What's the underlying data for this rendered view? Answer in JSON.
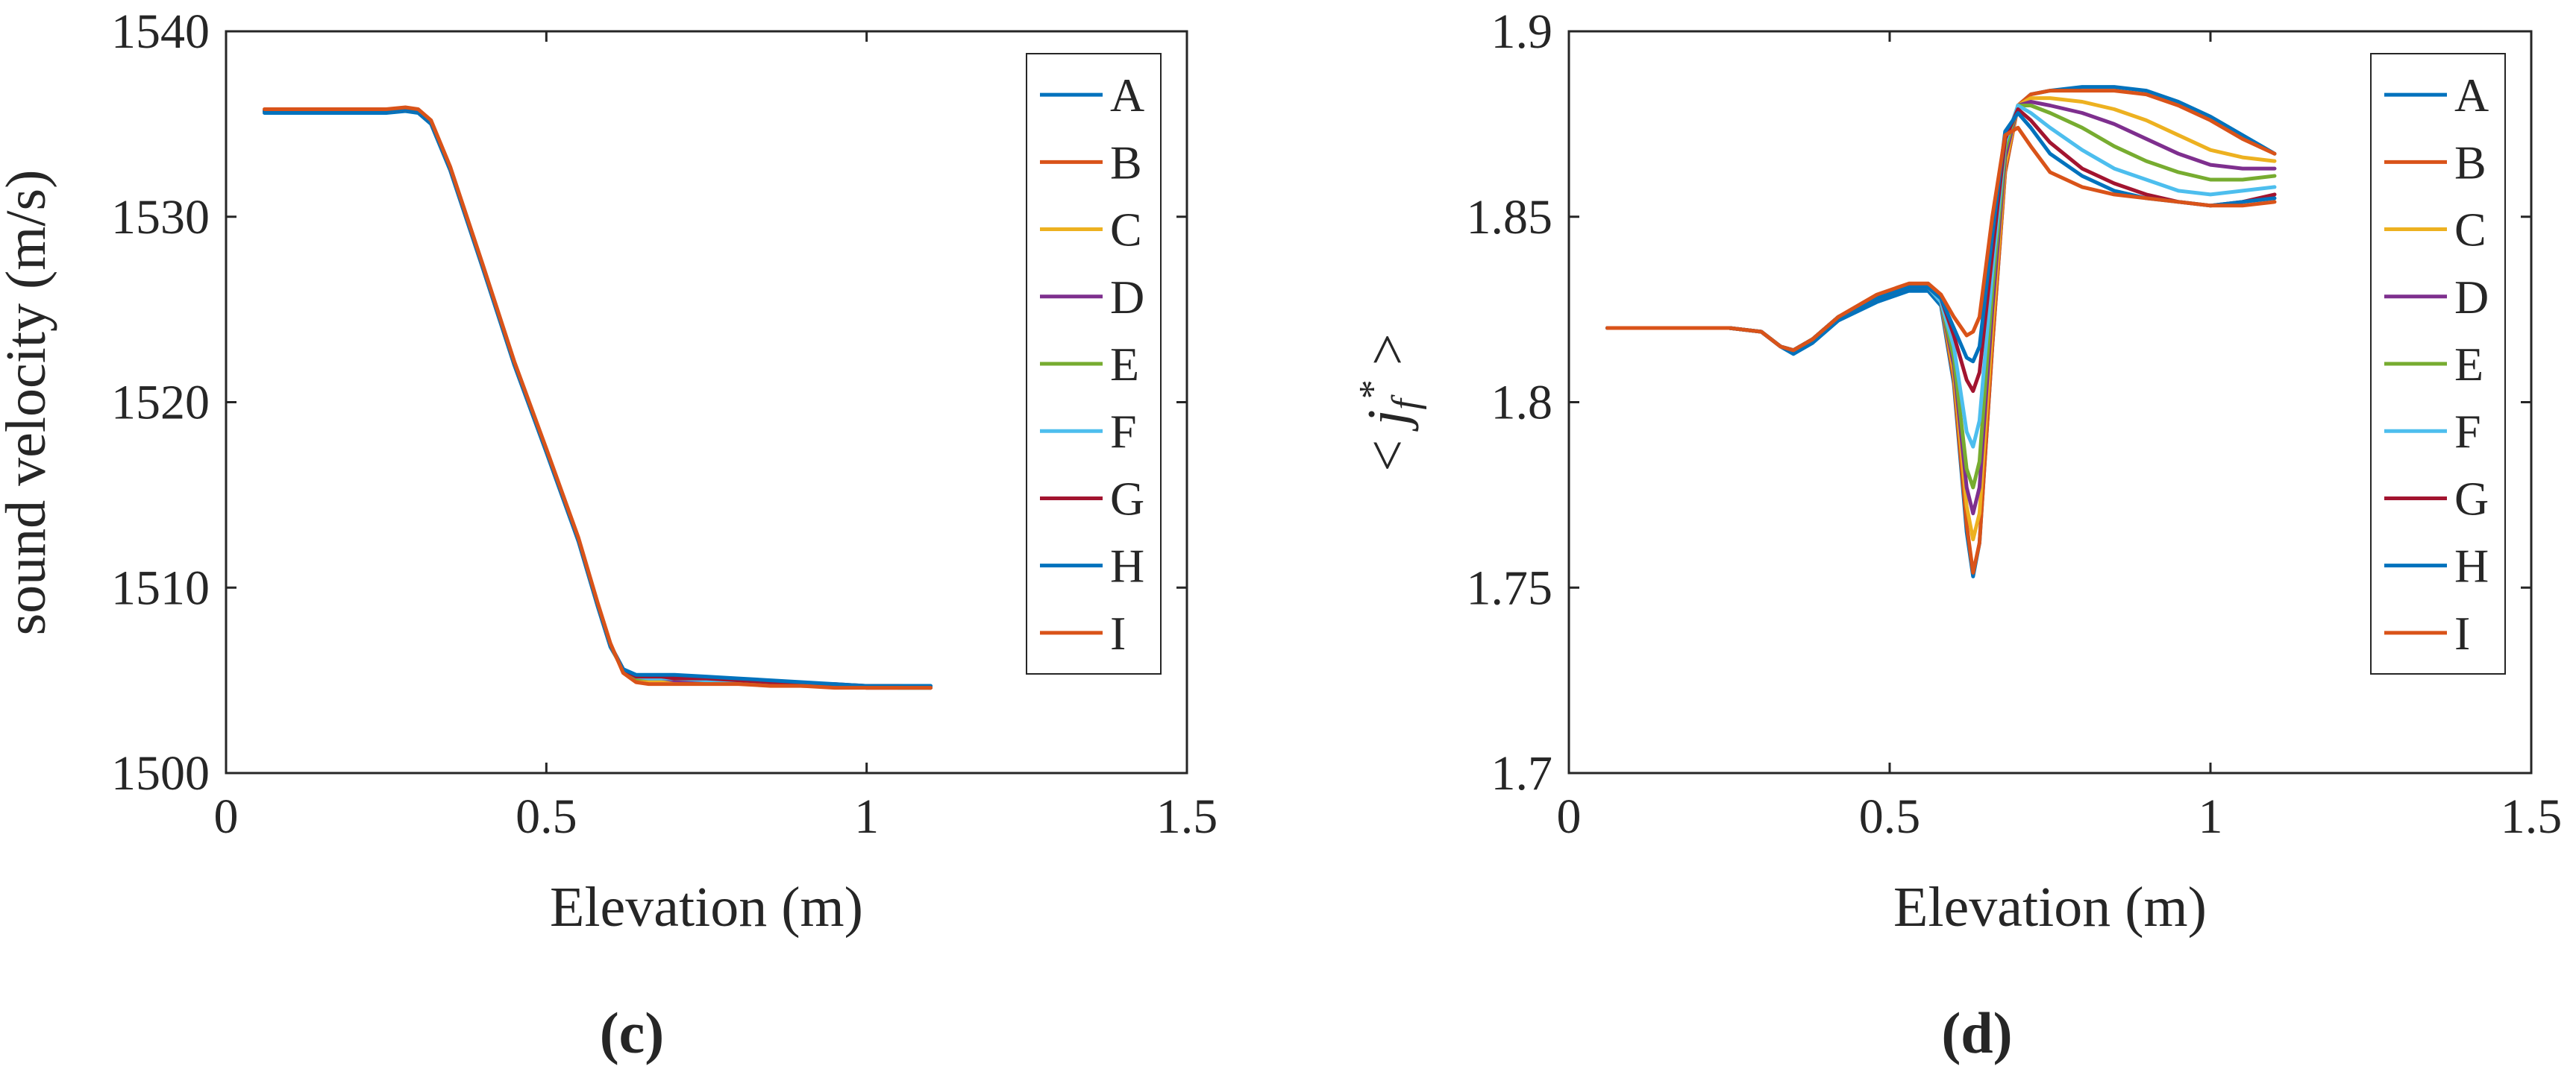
{
  "colors": {
    "A": "#0072bd",
    "B": "#d95319",
    "C": "#edb120",
    "D": "#7e2f8e",
    "E": "#77ac30",
    "F": "#4dbeee",
    "G": "#a2142f",
    "H": "#0072bd",
    "I": "#d95319",
    "axis": "#262626",
    "box": "#d9d9d9"
  },
  "chart_data": [
    {
      "type": "line",
      "panel_label": "(c)",
      "xlabel": "Elevation (m)",
      "ylabel": "sound velocity (m/s)",
      "xlim": [
        0,
        1.5
      ],
      "ylim": [
        1500,
        1540
      ],
      "xticks": [
        0,
        0.5,
        1,
        1.5
      ],
      "xtick_labels": [
        "0",
        "0.5",
        "1",
        "1.5"
      ],
      "yticks": [
        1500,
        1510,
        1520,
        1530,
        1540
      ],
      "ytick_labels": [
        "1500",
        "1510",
        "1520",
        "1530",
        "1540"
      ],
      "grid": false,
      "legend_position": "top-right",
      "x": [
        0.06,
        0.1,
        0.15,
        0.2,
        0.25,
        0.28,
        0.3,
        0.32,
        0.35,
        0.4,
        0.45,
        0.5,
        0.55,
        0.58,
        0.6,
        0.62,
        0.64,
        0.66,
        0.68,
        0.7,
        0.75,
        0.8,
        0.85,
        0.9,
        0.95,
        1.0,
        1.05,
        1.1
      ],
      "series": [
        {
          "name": "A",
          "values": [
            1535.6,
            1535.6,
            1535.6,
            1535.6,
            1535.6,
            1535.7,
            1535.6,
            1535.0,
            1532.5,
            1527.3,
            1522.0,
            1517.3,
            1512.5,
            1509.0,
            1506.8,
            1505.6,
            1505.2,
            1505.2,
            1505.2,
            1505.2,
            1505.1,
            1505.0,
            1504.9,
            1504.8,
            1504.7,
            1504.7,
            1504.7,
            1504.7
          ]
        },
        {
          "name": "B",
          "values": [
            1535.7,
            1535.7,
            1535.7,
            1535.7,
            1535.7,
            1535.8,
            1535.7,
            1535.1,
            1532.6,
            1527.4,
            1522.1,
            1517.4,
            1512.6,
            1509.1,
            1506.9,
            1505.5,
            1505.1,
            1505.0,
            1505.0,
            1505.0,
            1504.9,
            1504.9,
            1504.8,
            1504.7,
            1504.7,
            1504.6,
            1504.6,
            1504.6
          ]
        },
        {
          "name": "C",
          "values": [
            1535.7,
            1535.7,
            1535.7,
            1535.7,
            1535.7,
            1535.8,
            1535.7,
            1535.1,
            1532.6,
            1527.4,
            1522.1,
            1517.4,
            1512.6,
            1509.1,
            1506.9,
            1505.5,
            1505.1,
            1505.0,
            1505.0,
            1505.0,
            1505.0,
            1504.9,
            1504.8,
            1504.7,
            1504.7,
            1504.6,
            1504.6,
            1504.6
          ]
        },
        {
          "name": "D",
          "values": [
            1535.7,
            1535.7,
            1535.7,
            1535.7,
            1535.7,
            1535.8,
            1535.7,
            1535.1,
            1532.6,
            1527.4,
            1522.1,
            1517.4,
            1512.6,
            1509.1,
            1506.9,
            1505.5,
            1505.1,
            1505.1,
            1505.1,
            1505.0,
            1505.0,
            1504.9,
            1504.8,
            1504.8,
            1504.7,
            1504.6,
            1504.6,
            1504.6
          ]
        },
        {
          "name": "E",
          "values": [
            1535.7,
            1535.7,
            1535.7,
            1535.7,
            1535.7,
            1535.8,
            1535.7,
            1535.1,
            1532.6,
            1527.4,
            1522.1,
            1517.4,
            1512.6,
            1509.1,
            1506.9,
            1505.5,
            1505.1,
            1505.1,
            1505.1,
            1505.1,
            1505.0,
            1504.9,
            1504.9,
            1504.8,
            1504.7,
            1504.7,
            1504.6,
            1504.6
          ]
        },
        {
          "name": "F",
          "values": [
            1535.7,
            1535.7,
            1535.7,
            1535.7,
            1535.7,
            1535.8,
            1535.7,
            1535.1,
            1532.6,
            1527.4,
            1522.1,
            1517.4,
            1512.6,
            1509.1,
            1506.9,
            1505.6,
            1505.2,
            1505.1,
            1505.1,
            1505.1,
            1505.0,
            1505.0,
            1504.9,
            1504.8,
            1504.7,
            1504.7,
            1504.6,
            1504.6
          ]
        },
        {
          "name": "G",
          "values": [
            1535.7,
            1535.7,
            1535.7,
            1535.7,
            1535.7,
            1535.8,
            1535.7,
            1535.1,
            1532.6,
            1527.4,
            1522.1,
            1517.4,
            1512.6,
            1509.1,
            1506.9,
            1505.6,
            1505.2,
            1505.2,
            1505.2,
            1505.1,
            1505.1,
            1505.0,
            1504.9,
            1504.8,
            1504.8,
            1504.7,
            1504.7,
            1504.6
          ]
        },
        {
          "name": "H",
          "values": [
            1535.7,
            1535.7,
            1535.7,
            1535.7,
            1535.7,
            1535.8,
            1535.7,
            1535.1,
            1532.6,
            1527.4,
            1522.1,
            1517.4,
            1512.6,
            1509.1,
            1506.9,
            1505.6,
            1505.3,
            1505.3,
            1505.3,
            1505.3,
            1505.2,
            1505.1,
            1505.0,
            1504.9,
            1504.8,
            1504.7,
            1504.7,
            1504.7
          ]
        },
        {
          "name": "I",
          "values": [
            1535.8,
            1535.8,
            1535.8,
            1535.8,
            1535.8,
            1535.9,
            1535.8,
            1535.2,
            1532.7,
            1527.5,
            1522.2,
            1517.5,
            1512.7,
            1509.2,
            1507.0,
            1505.4,
            1504.9,
            1504.8,
            1504.8,
            1504.8,
            1504.8,
            1504.8,
            1504.7,
            1504.7,
            1504.6,
            1504.6,
            1504.6,
            1504.6
          ]
        }
      ]
    },
    {
      "type": "line",
      "panel_label": "(d)",
      "xlabel": "Elevation (m)",
      "ylabel": "< j_f^* >",
      "xlim": [
        0,
        1.5
      ],
      "ylim": [
        1.7,
        1.9
      ],
      "xticks": [
        0,
        0.5,
        1,
        1.5
      ],
      "xtick_labels": [
        "0",
        "0.5",
        "1",
        "1.5"
      ],
      "yticks": [
        1.7,
        1.75,
        1.8,
        1.85,
        1.9
      ],
      "ytick_labels": [
        "1.7",
        "1.75",
        "1.8",
        "1.85",
        "1.9"
      ],
      "grid": false,
      "legend_position": "top-right",
      "x": [
        0.06,
        0.15,
        0.25,
        0.3,
        0.33,
        0.35,
        0.38,
        0.42,
        0.48,
        0.53,
        0.56,
        0.58,
        0.6,
        0.62,
        0.63,
        0.64,
        0.66,
        0.68,
        0.7,
        0.72,
        0.75,
        0.8,
        0.85,
        0.9,
        0.95,
        1.0,
        1.05,
        1.1
      ],
      "series": [
        {
          "name": "A",
          "values": [
            1.82,
            1.82,
            1.82,
            1.819,
            1.815,
            1.813,
            1.816,
            1.822,
            1.827,
            1.83,
            1.83,
            1.826,
            1.805,
            1.765,
            1.753,
            1.762,
            1.815,
            1.862,
            1.88,
            1.883,
            1.884,
            1.885,
            1.885,
            1.884,
            1.881,
            1.877,
            1.872,
            1.867
          ]
        },
        {
          "name": "B",
          "values": [
            1.82,
            1.82,
            1.82,
            1.819,
            1.815,
            1.814,
            1.817,
            1.823,
            1.828,
            1.831,
            1.831,
            1.827,
            1.806,
            1.767,
            1.754,
            1.762,
            1.815,
            1.862,
            1.88,
            1.883,
            1.884,
            1.884,
            1.884,
            1.883,
            1.88,
            1.876,
            1.871,
            1.867
          ]
        },
        {
          "name": "C",
          "values": [
            1.82,
            1.82,
            1.82,
            1.819,
            1.815,
            1.814,
            1.817,
            1.823,
            1.828,
            1.831,
            1.831,
            1.827,
            1.808,
            1.772,
            1.763,
            1.77,
            1.82,
            1.864,
            1.88,
            1.882,
            1.882,
            1.881,
            1.879,
            1.876,
            1.872,
            1.868,
            1.866,
            1.865
          ]
        },
        {
          "name": "D",
          "values": [
            1.82,
            1.82,
            1.82,
            1.819,
            1.815,
            1.814,
            1.817,
            1.823,
            1.828,
            1.831,
            1.831,
            1.827,
            1.81,
            1.777,
            1.77,
            1.777,
            1.825,
            1.866,
            1.88,
            1.881,
            1.88,
            1.878,
            1.875,
            1.871,
            1.867,
            1.864,
            1.863,
            1.863
          ]
        },
        {
          "name": "E",
          "values": [
            1.82,
            1.82,
            1.82,
            1.819,
            1.815,
            1.814,
            1.817,
            1.823,
            1.828,
            1.831,
            1.831,
            1.827,
            1.812,
            1.782,
            1.777,
            1.784,
            1.83,
            1.868,
            1.88,
            1.88,
            1.878,
            1.874,
            1.869,
            1.865,
            1.862,
            1.86,
            1.86,
            1.861
          ]
        },
        {
          "name": "F",
          "values": [
            1.82,
            1.82,
            1.82,
            1.819,
            1.815,
            1.814,
            1.817,
            1.823,
            1.828,
            1.831,
            1.831,
            1.827,
            1.815,
            1.792,
            1.788,
            1.795,
            1.835,
            1.87,
            1.88,
            1.878,
            1.874,
            1.868,
            1.863,
            1.86,
            1.857,
            1.856,
            1.857,
            1.858
          ]
        },
        {
          "name": "G",
          "values": [
            1.82,
            1.82,
            1.82,
            1.819,
            1.815,
            1.814,
            1.817,
            1.823,
            1.828,
            1.831,
            1.831,
            1.828,
            1.818,
            1.806,
            1.803,
            1.808,
            1.84,
            1.871,
            1.879,
            1.876,
            1.87,
            1.863,
            1.859,
            1.856,
            1.854,
            1.853,
            1.854,
            1.856
          ]
        },
        {
          "name": "H",
          "values": [
            1.82,
            1.82,
            1.82,
            1.819,
            1.815,
            1.814,
            1.817,
            1.823,
            1.828,
            1.831,
            1.831,
            1.828,
            1.82,
            1.812,
            1.811,
            1.815,
            1.845,
            1.873,
            1.878,
            1.874,
            1.867,
            1.861,
            1.857,
            1.855,
            1.854,
            1.853,
            1.854,
            1.855
          ]
        },
        {
          "name": "I",
          "values": [
            1.82,
            1.82,
            1.82,
            1.819,
            1.815,
            1.814,
            1.817,
            1.823,
            1.829,
            1.832,
            1.832,
            1.829,
            1.823,
            1.818,
            1.819,
            1.823,
            1.85,
            1.872,
            1.874,
            1.869,
            1.862,
            1.858,
            1.856,
            1.855,
            1.854,
            1.853,
            1.853,
            1.854
          ]
        }
      ]
    }
  ]
}
